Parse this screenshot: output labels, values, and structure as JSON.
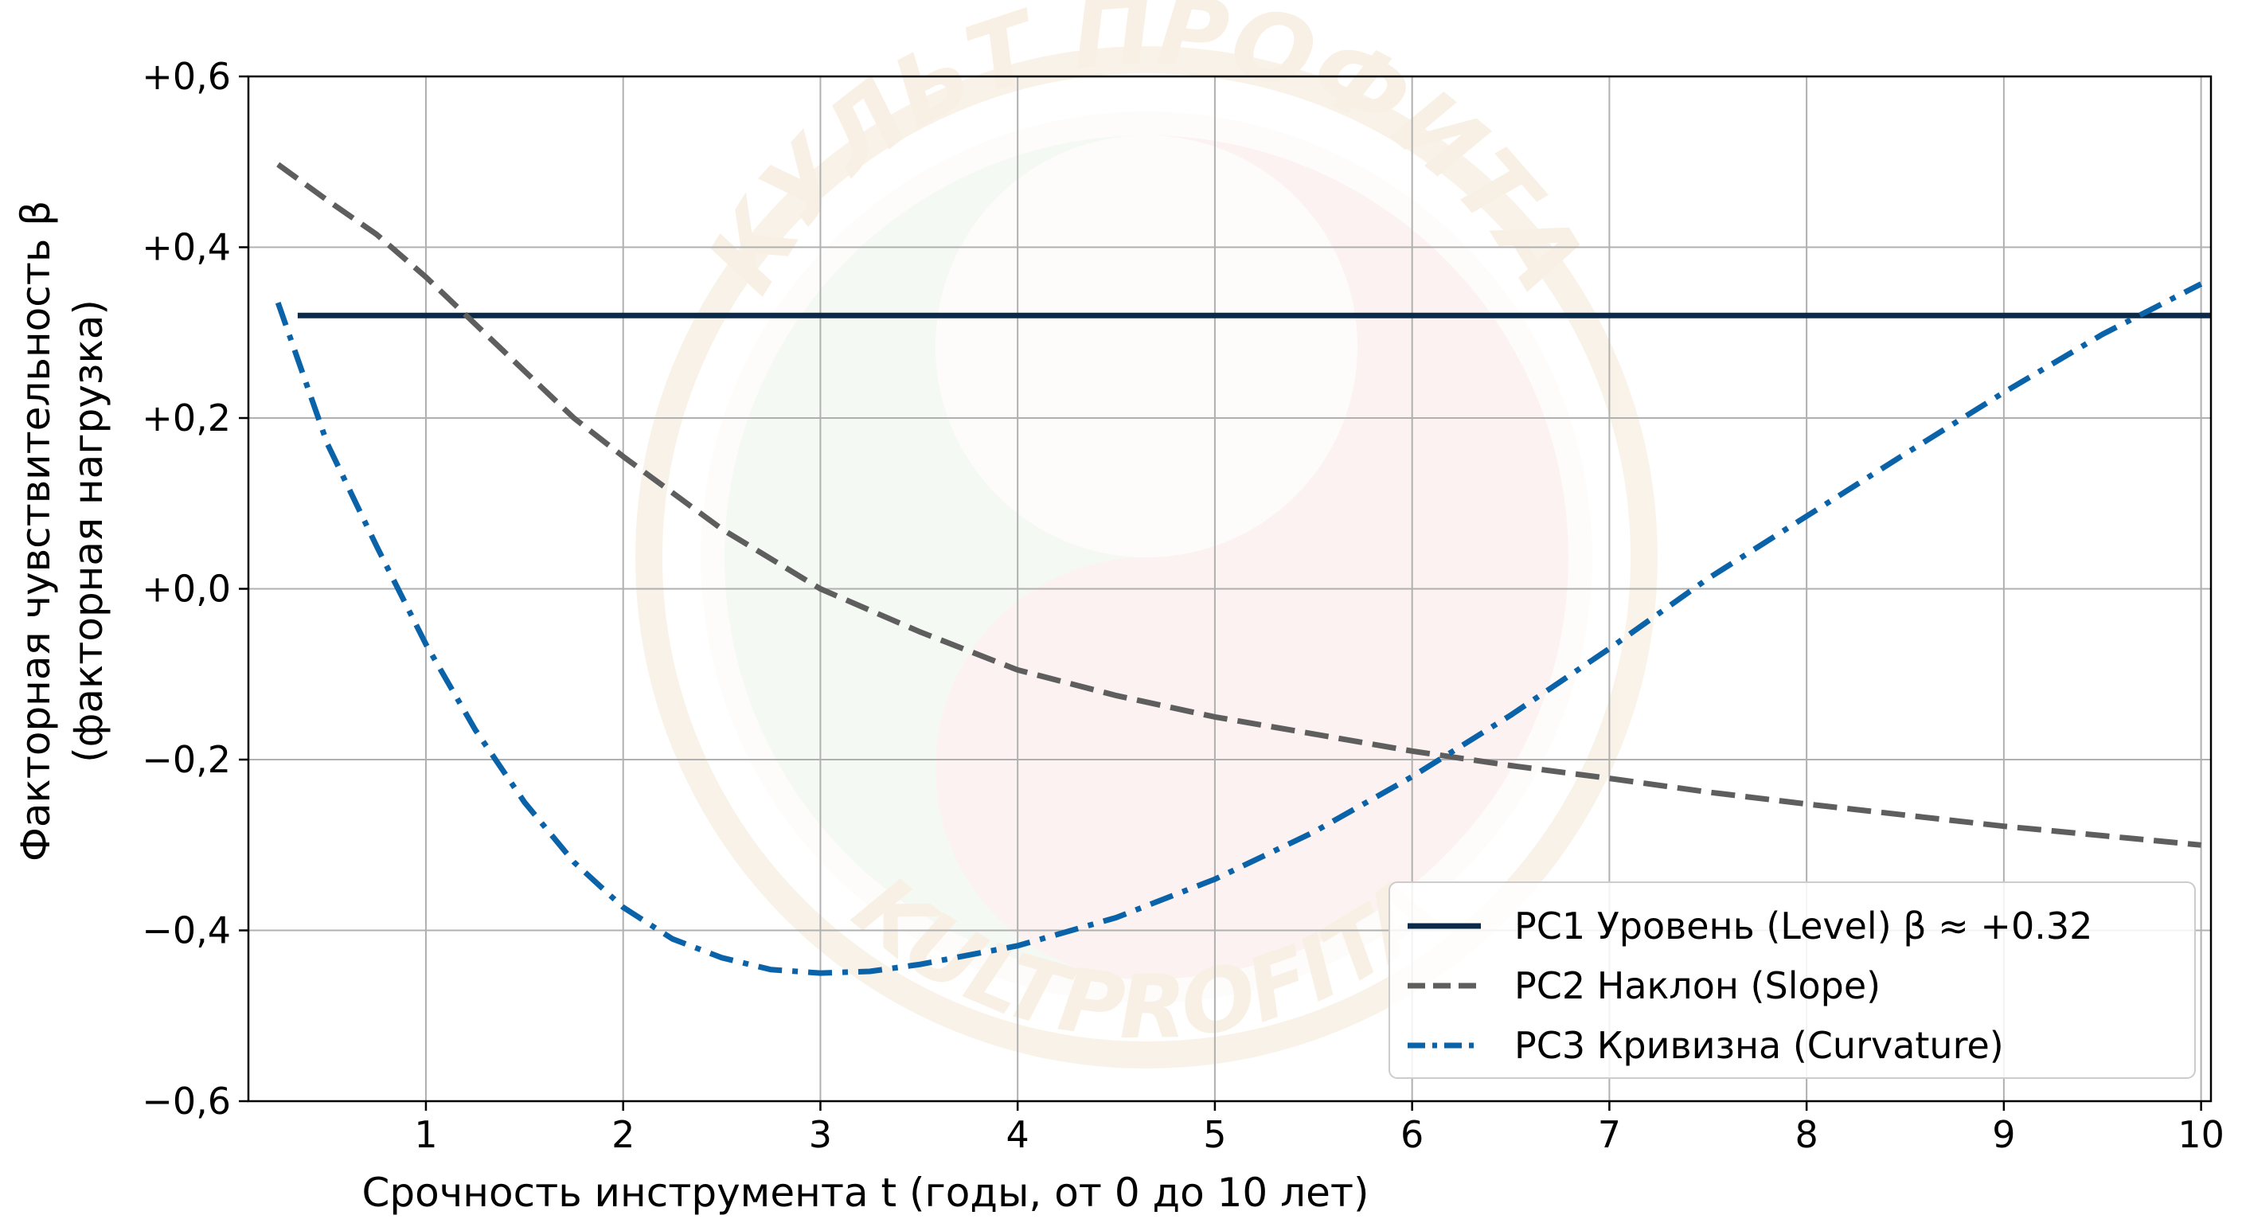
{
  "watermark": {
    "top_text": "КУЛЬТ ПРОФИТА",
    "bottom_text": "KULTPROFITA",
    "colors": {
      "ring": "#e7c99a",
      "green": "#cfe6cc",
      "red": "#f3c9c4",
      "text": "#e2c08a"
    }
  },
  "chart_data": {
    "type": "line",
    "xlabel": "Срочность инструмента t (годы, от 0 до 10 лет)",
    "ylabel_line1": "Факторная чувствительность β",
    "ylabel_line2": "(факторная нагрузка)",
    "xlim": [
      0.1,
      10.05
    ],
    "ylim": [
      -0.6,
      0.6
    ],
    "xticks": [
      1,
      2,
      3,
      4,
      5,
      6,
      7,
      8,
      9,
      10
    ],
    "xtick_labels": [
      "1",
      "2",
      "3",
      "4",
      "5",
      "6",
      "7",
      "8",
      "9",
      "10"
    ],
    "yticks": [
      0.6,
      0.4,
      0.2,
      0.0,
      -0.2,
      -0.4,
      -0.6
    ],
    "ytick_labels": [
      "+0,6",
      "+0,4",
      "+0,2",
      "+0,0",
      "−0,2",
      "−0,4",
      "−0,6"
    ],
    "grid": true,
    "legend_position": "bottom-right",
    "series": [
      {
        "name": "PC1 Уровень (Level) β ≈ +0.32",
        "color": "#0b2a4a",
        "style": "solid",
        "x": [
          0.35,
          10.05
        ],
        "y": [
          0.32,
          0.32
        ]
      },
      {
        "name": "PC2 Наклон (Slope)",
        "color": "#5e5e5e",
        "style": "dashed",
        "x": [
          0.25,
          0.5,
          0.75,
          1.0,
          1.25,
          1.5,
          1.75,
          2.0,
          2.5,
          3.0,
          3.5,
          4.0,
          4.5,
          5.0,
          5.5,
          6.0,
          6.5,
          7.0,
          7.5,
          8.0,
          8.5,
          9.0,
          9.5,
          10.0
        ],
        "y": [
          0.497,
          0.455,
          0.415,
          0.365,
          0.31,
          0.255,
          0.2,
          0.155,
          0.07,
          0.0,
          -0.05,
          -0.095,
          -0.125,
          -0.15,
          -0.17,
          -0.19,
          -0.207,
          -0.222,
          -0.238,
          -0.252,
          -0.265,
          -0.278,
          -0.289,
          -0.3
        ]
      },
      {
        "name": "PC3 Кривизна (Curvature)",
        "color": "#0a63a8",
        "style": "dashdot",
        "x": [
          0.25,
          0.5,
          0.75,
          1.0,
          1.25,
          1.5,
          1.75,
          2.0,
          2.25,
          2.5,
          2.75,
          3.0,
          3.25,
          3.5,
          4.0,
          4.5,
          5.0,
          5.5,
          6.0,
          6.5,
          7.0,
          7.5,
          8.0,
          8.5,
          9.0,
          9.5,
          10.0
        ],
        "y": [
          0.335,
          0.17,
          0.05,
          -0.065,
          -0.165,
          -0.25,
          -0.32,
          -0.373,
          -0.41,
          -0.432,
          -0.446,
          -0.45,
          -0.448,
          -0.44,
          -0.418,
          -0.385,
          -0.34,
          -0.285,
          -0.22,
          -0.148,
          -0.07,
          0.012,
          0.085,
          0.158,
          0.23,
          0.298,
          0.357
        ]
      }
    ]
  }
}
